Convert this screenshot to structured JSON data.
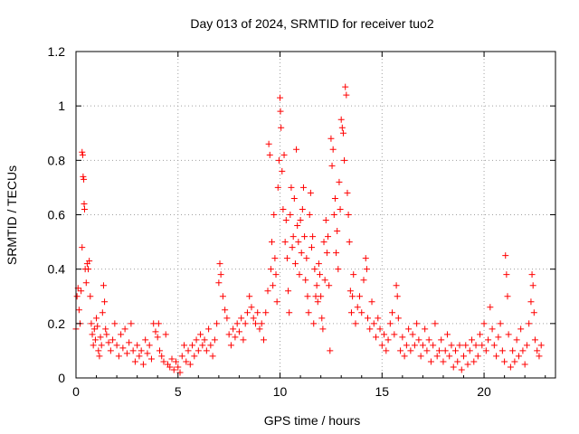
{
  "chart_data": {
    "type": "scatter",
    "title": "Day 013 of 2024, SRMTID for receiver tuo2",
    "xlabel": "GPS time / hours",
    "ylabel": "SRMTID / TECUs",
    "xlim": [
      0,
      23.5
    ],
    "ylim": [
      0,
      1.2
    ],
    "xticks": [
      0,
      5,
      10,
      15,
      20
    ],
    "yticks": [
      0,
      0.2,
      0.4,
      0.6,
      0.8,
      1,
      1.2
    ],
    "xtick_labels": [
      "0",
      "5",
      "10",
      "15",
      "20"
    ],
    "ytick_labels": [
      "0",
      "0.2",
      "0.4",
      "0.6",
      "0.8",
      "1",
      "1.2"
    ],
    "grid": true,
    "marker": "+",
    "series": [
      {
        "name": "SRMTID",
        "color": "#ff0000",
        "points": [
          [
            0.0,
            0.18
          ],
          [
            0.05,
            0.3
          ],
          [
            0.1,
            0.33
          ],
          [
            0.15,
            0.25
          ],
          [
            0.2,
            0.2
          ],
          [
            0.25,
            0.32
          ],
          [
            0.3,
            0.83
          ],
          [
            0.33,
            0.82
          ],
          [
            0.35,
            0.74
          ],
          [
            0.38,
            0.73
          ],
          [
            0.4,
            0.64
          ],
          [
            0.42,
            0.62
          ],
          [
            0.3,
            0.48
          ],
          [
            0.45,
            0.4
          ],
          [
            0.5,
            0.35
          ],
          [
            0.55,
            0.42
          ],
          [
            0.6,
            0.4
          ],
          [
            0.65,
            0.43
          ],
          [
            0.7,
            0.3
          ],
          [
            0.75,
            0.2
          ],
          [
            0.8,
            0.16
          ],
          [
            0.85,
            0.12
          ],
          [
            0.9,
            0.18
          ],
          [
            0.95,
            0.14
          ],
          [
            1.0,
            0.22
          ],
          [
            1.05,
            0.19
          ],
          [
            1.1,
            0.1
          ],
          [
            1.15,
            0.08
          ],
          [
            1.2,
            0.15
          ],
          [
            1.25,
            0.12
          ],
          [
            1.3,
            0.24
          ],
          [
            1.35,
            0.34
          ],
          [
            1.4,
            0.28
          ],
          [
            1.45,
            0.18
          ],
          [
            1.5,
            0.16
          ],
          [
            1.6,
            0.13
          ],
          [
            1.7,
            0.1
          ],
          [
            1.8,
            0.14
          ],
          [
            1.9,
            0.2
          ],
          [
            2.0,
            0.12
          ],
          [
            2.1,
            0.08
          ],
          [
            2.2,
            0.16
          ],
          [
            2.3,
            0.11
          ],
          [
            2.4,
            0.18
          ],
          [
            2.5,
            0.09
          ],
          [
            2.6,
            0.13
          ],
          [
            2.7,
            0.2
          ],
          [
            2.8,
            0.1
          ],
          [
            2.9,
            0.06
          ],
          [
            3.0,
            0.12
          ],
          [
            3.1,
            0.08
          ],
          [
            3.2,
            0.1
          ],
          [
            3.3,
            0.05
          ],
          [
            3.4,
            0.14
          ],
          [
            3.5,
            0.09
          ],
          [
            3.6,
            0.12
          ],
          [
            3.7,
            0.07
          ],
          [
            3.8,
            0.2
          ],
          [
            3.9,
            0.17
          ],
          [
            4.0,
            0.15
          ],
          [
            4.05,
            0.2
          ],
          [
            4.1,
            0.1
          ],
          [
            4.2,
            0.08
          ],
          [
            4.3,
            0.06
          ],
          [
            4.4,
            0.16
          ],
          [
            4.5,
            0.05
          ],
          [
            4.6,
            0.04
          ],
          [
            4.7,
            0.07
          ],
          [
            4.8,
            0.03
          ],
          [
            4.9,
            0.06
          ],
          [
            5.0,
            0.04
          ],
          [
            5.1,
            0.02
          ],
          [
            5.2,
            0.08
          ],
          [
            5.3,
            0.12
          ],
          [
            5.4,
            0.06
          ],
          [
            5.5,
            0.1
          ],
          [
            5.6,
            0.05
          ],
          [
            5.7,
            0.12
          ],
          [
            5.8,
            0.08
          ],
          [
            5.9,
            0.14
          ],
          [
            6.0,
            0.1
          ],
          [
            6.1,
            0.16
          ],
          [
            6.2,
            0.12
          ],
          [
            6.3,
            0.14
          ],
          [
            6.4,
            0.1
          ],
          [
            6.5,
            0.18
          ],
          [
            6.6,
            0.12
          ],
          [
            6.7,
            0.08
          ],
          [
            6.8,
            0.14
          ],
          [
            6.9,
            0.2
          ],
          [
            7.0,
            0.35
          ],
          [
            7.05,
            0.42
          ],
          [
            7.1,
            0.38
          ],
          [
            7.2,
            0.3
          ],
          [
            7.3,
            0.25
          ],
          [
            7.4,
            0.22
          ],
          [
            7.5,
            0.16
          ],
          [
            7.6,
            0.12
          ],
          [
            7.7,
            0.18
          ],
          [
            7.8,
            0.15
          ],
          [
            7.9,
            0.2
          ],
          [
            8.0,
            0.17
          ],
          [
            8.1,
            0.22
          ],
          [
            8.2,
            0.14
          ],
          [
            8.3,
            0.2
          ],
          [
            8.4,
            0.24
          ],
          [
            8.5,
            0.3
          ],
          [
            8.6,
            0.26
          ],
          [
            8.7,
            0.22
          ],
          [
            8.8,
            0.2
          ],
          [
            8.9,
            0.24
          ],
          [
            9.0,
            0.18
          ],
          [
            9.1,
            0.2
          ],
          [
            9.2,
            0.14
          ],
          [
            9.3,
            0.24
          ],
          [
            9.4,
            0.32
          ],
          [
            9.45,
            0.86
          ],
          [
            9.5,
            0.82
          ],
          [
            9.55,
            0.4
          ],
          [
            9.6,
            0.5
          ],
          [
            9.65,
            0.34
          ],
          [
            9.7,
            0.6
          ],
          [
            9.75,
            0.44
          ],
          [
            9.8,
            0.38
          ],
          [
            9.85,
            0.28
          ],
          [
            9.9,
            0.7
          ],
          [
            9.95,
            0.8
          ],
          [
            10.0,
            1.03
          ],
          [
            10.02,
            0.98
          ],
          [
            10.05,
            0.92
          ],
          [
            10.1,
            0.76
          ],
          [
            10.15,
            0.62
          ],
          [
            10.2,
            0.82
          ],
          [
            10.25,
            0.5
          ],
          [
            10.3,
            0.58
          ],
          [
            10.35,
            0.44
          ],
          [
            10.4,
            0.32
          ],
          [
            10.45,
            0.24
          ],
          [
            10.5,
            0.6
          ],
          [
            10.55,
            0.7
          ],
          [
            10.6,
            0.48
          ],
          [
            10.65,
            0.52
          ],
          [
            10.7,
            0.66
          ],
          [
            10.75,
            0.42
          ],
          [
            10.8,
            0.84
          ],
          [
            10.85,
            0.56
          ],
          [
            10.9,
            0.5
          ],
          [
            10.95,
            0.38
          ],
          [
            11.0,
            0.58
          ],
          [
            11.05,
            0.46
          ],
          [
            11.1,
            0.62
          ],
          [
            11.15,
            0.7
          ],
          [
            11.2,
            0.52
          ],
          [
            11.25,
            0.36
          ],
          [
            11.3,
            0.44
          ],
          [
            11.35,
            0.3
          ],
          [
            11.4,
            0.24
          ],
          [
            11.45,
            0.6
          ],
          [
            11.5,
            0.68
          ],
          [
            11.55,
            0.48
          ],
          [
            11.6,
            0.52
          ],
          [
            11.65,
            0.2
          ],
          [
            11.7,
            0.4
          ],
          [
            11.75,
            0.3
          ],
          [
            11.8,
            0.34
          ],
          [
            11.85,
            0.28
          ],
          [
            11.9,
            0.42
          ],
          [
            11.95,
            0.38
          ],
          [
            12.0,
            0.3
          ],
          [
            12.05,
            0.22
          ],
          [
            12.1,
            0.18
          ],
          [
            12.15,
            0.5
          ],
          [
            12.2,
            0.36
          ],
          [
            12.25,
            0.58
          ],
          [
            12.3,
            0.46
          ],
          [
            12.35,
            0.52
          ],
          [
            12.4,
            0.34
          ],
          [
            12.45,
            0.1
          ],
          [
            12.5,
            0.88
          ],
          [
            12.55,
            0.78
          ],
          [
            12.6,
            0.84
          ],
          [
            12.65,
            0.6
          ],
          [
            12.7,
            0.66
          ],
          [
            12.75,
            0.46
          ],
          [
            12.8,
            0.54
          ],
          [
            12.85,
            0.4
          ],
          [
            12.9,
            0.72
          ],
          [
            12.95,
            0.62
          ],
          [
            13.0,
            0.95
          ],
          [
            13.05,
            0.92
          ],
          [
            13.1,
            0.9
          ],
          [
            13.15,
            0.8
          ],
          [
            13.2,
            1.07
          ],
          [
            13.25,
            1.04
          ],
          [
            13.3,
            0.68
          ],
          [
            13.35,
            0.6
          ],
          [
            13.4,
            0.5
          ],
          [
            13.45,
            0.32
          ],
          [
            13.5,
            0.24
          ],
          [
            13.55,
            0.3
          ],
          [
            13.6,
            0.38
          ],
          [
            13.7,
            0.2
          ],
          [
            13.8,
            0.26
          ],
          [
            13.9,
            0.3
          ],
          [
            14.0,
            0.24
          ],
          [
            14.1,
            0.36
          ],
          [
            14.2,
            0.44
          ],
          [
            14.25,
            0.4
          ],
          [
            14.3,
            0.22
          ],
          [
            14.4,
            0.18
          ],
          [
            14.5,
            0.28
          ],
          [
            14.6,
            0.2
          ],
          [
            14.7,
            0.15
          ],
          [
            14.8,
            0.22
          ],
          [
            14.9,
            0.18
          ],
          [
            15.0,
            0.12
          ],
          [
            15.1,
            0.16
          ],
          [
            15.2,
            0.1
          ],
          [
            15.3,
            0.14
          ],
          [
            15.4,
            0.2
          ],
          [
            15.5,
            0.24
          ],
          [
            15.6,
            0.16
          ],
          [
            15.7,
            0.34
          ],
          [
            15.75,
            0.3
          ],
          [
            15.8,
            0.22
          ],
          [
            15.9,
            0.1
          ],
          [
            16.0,
            0.15
          ],
          [
            16.1,
            0.08
          ],
          [
            16.2,
            0.12
          ],
          [
            16.3,
            0.18
          ],
          [
            16.4,
            0.1
          ],
          [
            16.5,
            0.16
          ],
          [
            16.6,
            0.12
          ],
          [
            16.7,
            0.2
          ],
          [
            16.8,
            0.14
          ],
          [
            16.9,
            0.08
          ],
          [
            17.0,
            0.12
          ],
          [
            17.1,
            0.18
          ],
          [
            17.2,
            0.1
          ],
          [
            17.3,
            0.14
          ],
          [
            17.4,
            0.06
          ],
          [
            17.5,
            0.12
          ],
          [
            17.6,
            0.2
          ],
          [
            17.7,
            0.08
          ],
          [
            17.8,
            0.1
          ],
          [
            17.9,
            0.14
          ],
          [
            18.0,
            0.06
          ],
          [
            18.1,
            0.1
          ],
          [
            18.2,
            0.16
          ],
          [
            18.3,
            0.08
          ],
          [
            18.4,
            0.12
          ],
          [
            18.5,
            0.04
          ],
          [
            18.6,
            0.1
          ],
          [
            18.7,
            0.06
          ],
          [
            18.8,
            0.12
          ],
          [
            18.9,
            0.03
          ],
          [
            19.0,
            0.08
          ],
          [
            19.1,
            0.12
          ],
          [
            19.2,
            0.05
          ],
          [
            19.3,
            0.1
          ],
          [
            19.4,
            0.14
          ],
          [
            19.5,
            0.06
          ],
          [
            19.6,
            0.12
          ],
          [
            19.7,
            0.08
          ],
          [
            19.8,
            0.16
          ],
          [
            19.9,
            0.12
          ],
          [
            20.0,
            0.2
          ],
          [
            20.1,
            0.1
          ],
          [
            20.2,
            0.14
          ],
          [
            20.3,
            0.26
          ],
          [
            20.4,
            0.18
          ],
          [
            20.5,
            0.12
          ],
          [
            20.6,
            0.08
          ],
          [
            20.7,
            0.15
          ],
          [
            20.8,
            0.2
          ],
          [
            20.9,
            0.1
          ],
          [
            21.0,
            0.06
          ],
          [
            21.05,
            0.45
          ],
          [
            21.1,
            0.38
          ],
          [
            21.15,
            0.3
          ],
          [
            21.2,
            0.16
          ],
          [
            21.3,
            0.04
          ],
          [
            21.4,
            0.1
          ],
          [
            21.5,
            0.06
          ],
          [
            21.6,
            0.14
          ],
          [
            21.7,
            0.08
          ],
          [
            21.8,
            0.18
          ],
          [
            21.9,
            0.1
          ],
          [
            22.0,
            0.05
          ],
          [
            22.1,
            0.12
          ],
          [
            22.2,
            0.2
          ],
          [
            22.3,
            0.28
          ],
          [
            22.35,
            0.38
          ],
          [
            22.4,
            0.34
          ],
          [
            22.45,
            0.24
          ],
          [
            22.5,
            0.14
          ],
          [
            22.6,
            0.1
          ],
          [
            22.7,
            0.08
          ],
          [
            22.8,
            0.12
          ]
        ]
      }
    ]
  }
}
